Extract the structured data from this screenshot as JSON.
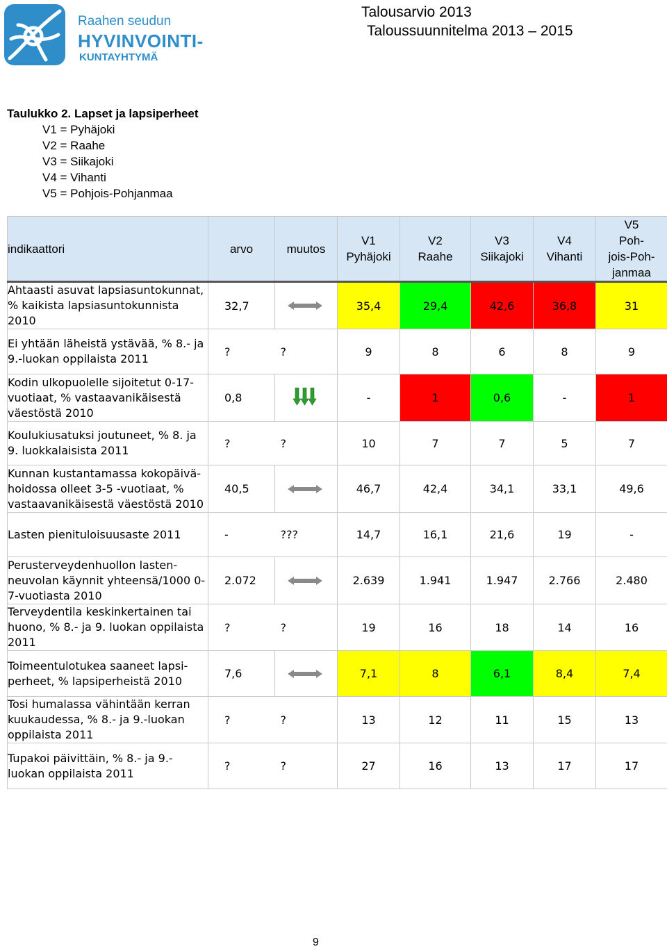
{
  "logo": {
    "line1": "Raahen seudun",
    "line2": "HYVINVOINTI-",
    "line3": "KUNTAYHTYMÄ"
  },
  "header": {
    "line1": "Talousarvio 2013",
    "line2": "Taloussuunnitelma 2013 – 2015"
  },
  "caption": {
    "title": "Taulukko 2. Lapset ja lapsiperheet",
    "legend": [
      "V1 = Pyhäjoki",
      "V2 = Raahe",
      "V3 = Siikajoki",
      "V4 = Vihanti",
      "V5 = Pohjois-Pohjanmaa"
    ]
  },
  "table": {
    "headers": {
      "indikaattori": "indikaattori",
      "arvo": "arvo",
      "muutos": "muutos",
      "v1": [
        "V1",
        "Pyhäjoki"
      ],
      "v2": [
        "V2",
        "Raahe"
      ],
      "v3": [
        "V3",
        "Siikajoki"
      ],
      "v4": [
        "V4",
        "Vihanti"
      ],
      "v5": [
        "V5",
        "Poh-",
        "jois-Poh-",
        "janmaa"
      ]
    },
    "colors": {
      "yellow": "#ffff00",
      "green": "#00ff00",
      "red": "#ff0000",
      "header_bg": "#d6e6f4"
    },
    "rows": [
      {
        "label": "Ahtaasti asuvat lapsiasuntokunnat, % kaikista lapsiasuntokunnista 2010",
        "arvo": "32,7",
        "muutos": "arrow-left-right-icon",
        "muutos_text": "",
        "v": [
          "35,4",
          "29,4",
          "42,6",
          "36,8",
          "31"
        ],
        "bg": [
          "yellow",
          "green",
          "red",
          "red",
          "yellow"
        ]
      },
      {
        "label": "Ei yhtään läheistä ystävää, % 8.- ja 9.-luokan oppilaista 2011",
        "arvo": "?",
        "muutos": "",
        "muutos_text": "?",
        "v": [
          "9",
          "8",
          "6",
          "8",
          "9"
        ],
        "bg": [
          "",
          "",
          "",
          "",
          ""
        ]
      },
      {
        "label": "Kodin ulkopuolelle sijoitetut 0-17-vuotiaat, % vastaavanikäisestä väestöstä 2010",
        "arvo": "0,8",
        "muutos": "arrows-down-icon",
        "muutos_text": "",
        "v": [
          "-",
          "1",
          "0,6",
          "-",
          "1"
        ],
        "bg": [
          "",
          "red",
          "green",
          "",
          "red"
        ]
      },
      {
        "label": "Koulukiusatuksi joutuneet, % 8. ja 9. luokkalaisista 2011",
        "arvo": "?",
        "muutos": "",
        "muutos_text": "?",
        "v": [
          "10",
          "7",
          "7",
          "5",
          "7"
        ],
        "bg": [
          "",
          "",
          "",
          "",
          ""
        ]
      },
      {
        "label": "Kunnan kustantamassa kokopäivä-hoidossa olleet 3-5 -vuotiaat, % vastaavanikäisestä väestöstä 2010",
        "arvo": "40,5",
        "muutos": "arrow-left-right-icon",
        "muutos_text": "",
        "v": [
          "46,7",
          "42,4",
          "34,1",
          "33,1",
          "49,6"
        ],
        "bg": [
          "",
          "",
          "",
          "",
          ""
        ]
      },
      {
        "label": "Lasten pienituloisuusaste 2011",
        "arvo": "-",
        "muutos": "",
        "muutos_text": "???",
        "v": [
          "14,7",
          "16,1",
          "21,6",
          "19",
          "-"
        ],
        "bg": [
          "",
          "",
          "",
          "",
          ""
        ]
      },
      {
        "label": "Perusterveydenhuollon lasten-neuvolan käynnit yhteensä/1000 0-7-vuotiasta 2010",
        "arvo": "2.072",
        "muutos": "arrow-left-right-icon",
        "muutos_text": "",
        "v": [
          "2.639",
          "1.941",
          "1.947",
          "2.766",
          "2.480"
        ],
        "bg": [
          "",
          "",
          "",
          "",
          ""
        ]
      },
      {
        "label": "Terveydentila keskinkertainen tai huono, % 8.- ja 9. luokan oppilaista 2011",
        "arvo": "?",
        "muutos": "",
        "muutos_text": "?",
        "v": [
          "19",
          "16",
          "18",
          "14",
          "16"
        ],
        "bg": [
          "",
          "",
          "",
          "",
          ""
        ]
      },
      {
        "label": "Toimeentulotukea saaneet lapsi-perheet, % lapsiperheistä 2010",
        "arvo": "7,6",
        "muutos": "arrow-left-right-icon",
        "muutos_text": "",
        "v": [
          "7,1",
          "8",
          "6,1",
          "8,4",
          "7,4"
        ],
        "bg": [
          "yellow",
          "yellow",
          "green",
          "yellow",
          "yellow"
        ]
      },
      {
        "label": "Tosi humalassa vähintään kerran kuukaudessa, % 8.- ja 9.-luokan oppilaista 2011",
        "arvo": "?",
        "muutos": "",
        "muutos_text": "?",
        "v": [
          "13",
          "12",
          "11",
          "15",
          "13"
        ],
        "bg": [
          "",
          "",
          "",
          "",
          ""
        ]
      },
      {
        "label": "Tupakoi päivittäin, % 8.- ja 9.-luokan oppilaista 2011",
        "arvo": "?",
        "muutos": "",
        "muutos_text": "?",
        "v": [
          "27",
          "16",
          "13",
          "17",
          "17"
        ],
        "bg": [
          "",
          "",
          "",
          "",
          ""
        ]
      }
    ]
  },
  "footer": {
    "page_number": "9"
  }
}
